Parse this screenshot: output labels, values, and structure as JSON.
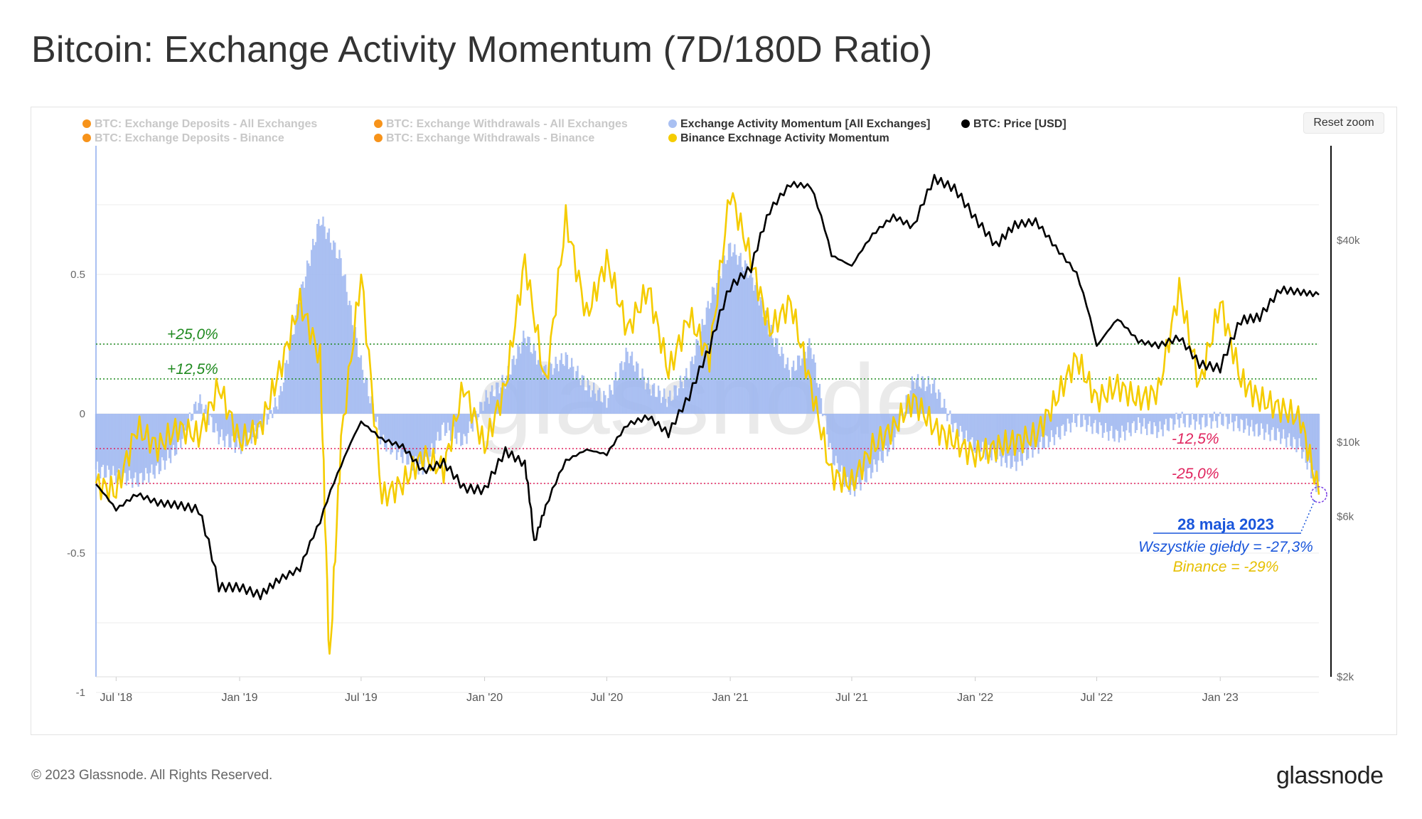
{
  "title": "Bitcoin: Exchange Activity Momentum (7D/180D Ratio)",
  "reset_zoom_label": "Reset zoom",
  "legend": [
    {
      "label": "BTC: Exchange Deposits - All Exchanges",
      "color": "#f7931a",
      "visible": false
    },
    {
      "label": "BTC: Exchange Withdrawals - All Exchanges",
      "color": "#f7931a",
      "visible": false
    },
    {
      "label": "Exchange Activity Momentum [All Exchanges]",
      "color": "#a9c0f2",
      "visible": true
    },
    {
      "label": "BTC: Price [USD]",
      "color": "#000000",
      "visible": true
    },
    {
      "label": "BTC: Exchange Deposits - Binance",
      "color": "#f7931a",
      "visible": false
    },
    {
      "label": "BTC: Exchange Withdrawals - Binance",
      "color": "#f7931a",
      "visible": false
    },
    {
      "label": "Binance Exchnage Activity Momentum",
      "color": "#f5cc00",
      "visible": true
    }
  ],
  "colors": {
    "momentum_all": "#9db6f0",
    "momentum_binance": "#f5cc00",
    "price": "#000000",
    "positive_line": "#1f8a1f",
    "negative_line": "#e0245e",
    "annotation_blue": "#1a56db",
    "annotation_yellow": "#e6bf00"
  },
  "watermark": "glassnode",
  "annotations": {
    "positive_levels": [
      {
        "value": 0.25,
        "label": "+25,0%"
      },
      {
        "value": 0.125,
        "label": "+12,5%"
      }
    ],
    "negative_levels": [
      {
        "value": -0.125,
        "label": "-12,5%"
      },
      {
        "value": -0.25,
        "label": "-25,0%"
      }
    ],
    "callout_date": "28 maja 2023",
    "callout_all": "Wszystkie giełdy = -27,3%",
    "callout_binance": "Binance = -29%"
  },
  "chart_data": {
    "type": "line",
    "x_labels": [
      "Jul '18",
      "Jan '19",
      "Jul '19",
      "Jan '20",
      "Jul '20",
      "Jan '21",
      "Jul '21",
      "Jan '22",
      "Jul '22",
      "Jan '23"
    ],
    "x_range": [
      "2018-06-01",
      "2023-05-28"
    ],
    "y_left": {
      "ticks": [
        -1,
        -0.5,
        0,
        0.5
      ],
      "range": [
        -1,
        0.9
      ]
    },
    "y_right": {
      "ticks": [
        "$2k",
        "$6k",
        "$10k",
        "$40k"
      ],
      "scale": "log"
    },
    "series": [
      {
        "name": "Exchange Activity Momentum [All Exchanges]",
        "type": "area",
        "axis": "left",
        "points": [
          [
            "2018-06-01",
            -0.2
          ],
          [
            "2018-07-01",
            -0.22
          ],
          [
            "2018-08-01",
            -0.24
          ],
          [
            "2018-09-01",
            -0.2
          ],
          [
            "2018-10-01",
            -0.12
          ],
          [
            "2018-11-01",
            0.05
          ],
          [
            "2018-12-01",
            -0.08
          ],
          [
            "2019-01-01",
            -0.12
          ],
          [
            "2019-02-01",
            -0.05
          ],
          [
            "2019-03-01",
            0.05
          ],
          [
            "2019-04-01",
            0.42
          ],
          [
            "2019-05-01",
            0.7
          ],
          [
            "2019-06-01",
            0.55
          ],
          [
            "2019-07-01",
            0.18
          ],
          [
            "2019-08-01",
            -0.1
          ],
          [
            "2019-09-01",
            -0.15
          ],
          [
            "2019-10-01",
            -0.2
          ],
          [
            "2019-11-01",
            -0.05
          ],
          [
            "2019-12-01",
            -0.1
          ],
          [
            "2020-01-01",
            0.05
          ],
          [
            "2020-02-01",
            0.12
          ],
          [
            "2020-03-01",
            0.28
          ],
          [
            "2020-04-01",
            0.15
          ],
          [
            "2020-05-01",
            0.2
          ],
          [
            "2020-06-01",
            0.1
          ],
          [
            "2020-07-01",
            0.05
          ],
          [
            "2020-08-01",
            0.22
          ],
          [
            "2020-09-01",
            0.1
          ],
          [
            "2020-10-01",
            0.05
          ],
          [
            "2020-11-01",
            0.15
          ],
          [
            "2020-12-01",
            0.4
          ],
          [
            "2021-01-01",
            0.6
          ],
          [
            "2021-02-01",
            0.5
          ],
          [
            "2021-03-01",
            0.3
          ],
          [
            "2021-04-01",
            0.15
          ],
          [
            "2021-05-01",
            0.25
          ],
          [
            "2021-06-01",
            -0.15
          ],
          [
            "2021-07-01",
            -0.28
          ],
          [
            "2021-08-01",
            -0.2
          ],
          [
            "2021-09-01",
            -0.1
          ],
          [
            "2021-10-01",
            0.12
          ],
          [
            "2021-11-01",
            0.1
          ],
          [
            "2021-12-01",
            -0.05
          ],
          [
            "2022-01-01",
            -0.12
          ],
          [
            "2022-02-01",
            -0.15
          ],
          [
            "2022-03-01",
            -0.18
          ],
          [
            "2022-04-01",
            -0.12
          ],
          [
            "2022-05-01",
            -0.08
          ],
          [
            "2022-06-01",
            -0.02
          ],
          [
            "2022-07-01",
            -0.05
          ],
          [
            "2022-08-01",
            -0.08
          ],
          [
            "2022-09-01",
            -0.04
          ],
          [
            "2022-10-01",
            -0.06
          ],
          [
            "2022-11-01",
            -0.02
          ],
          [
            "2022-12-01",
            -0.03
          ],
          [
            "2023-01-01",
            -0.02
          ],
          [
            "2023-02-01",
            -0.04
          ],
          [
            "2023-03-01",
            -0.06
          ],
          [
            "2023-04-01",
            -0.08
          ],
          [
            "2023-05-01",
            -0.12
          ],
          [
            "2023-05-28",
            -0.273
          ]
        ]
      },
      {
        "name": "Binance Exchnage Activity Momentum",
        "type": "line",
        "axis": "left",
        "points": [
          [
            "2018-06-01",
            -0.25
          ],
          [
            "2018-07-01",
            -0.28
          ],
          [
            "2018-08-01",
            -0.05
          ],
          [
            "2018-09-01",
            -0.12
          ],
          [
            "2018-10-01",
            -0.05
          ],
          [
            "2018-11-01",
            -0.08
          ],
          [
            "2018-12-01",
            0.1
          ],
          [
            "2019-01-01",
            -0.1
          ],
          [
            "2019-02-01",
            -0.05
          ],
          [
            "2019-03-01",
            0.15
          ],
          [
            "2019-04-01",
            0.4
          ],
          [
            "2019-05-01",
            0.2
          ],
          [
            "2019-05-15",
            -0.9
          ],
          [
            "2019-06-01",
            -0.1
          ],
          [
            "2019-07-01",
            0.5
          ],
          [
            "2019-08-01",
            -0.3
          ],
          [
            "2019-09-01",
            -0.25
          ],
          [
            "2019-10-01",
            -0.15
          ],
          [
            "2019-11-01",
            -0.2
          ],
          [
            "2019-12-01",
            0.1
          ],
          [
            "2020-01-01",
            -0.12
          ],
          [
            "2020-02-01",
            0.1
          ],
          [
            "2020-03-01",
            0.55
          ],
          [
            "2020-04-01",
            0.1
          ],
          [
            "2020-05-01",
            0.7
          ],
          [
            "2020-06-01",
            0.35
          ],
          [
            "2020-07-01",
            0.55
          ],
          [
            "2020-08-01",
            0.3
          ],
          [
            "2020-09-01",
            0.45
          ],
          [
            "2020-10-01",
            0.15
          ],
          [
            "2020-11-01",
            0.35
          ],
          [
            "2020-12-01",
            0.2
          ],
          [
            "2021-01-01",
            0.8
          ],
          [
            "2021-02-01",
            0.55
          ],
          [
            "2021-03-01",
            0.3
          ],
          [
            "2021-04-01",
            0.4
          ],
          [
            "2021-05-01",
            0.1
          ],
          [
            "2021-06-01",
            -0.22
          ],
          [
            "2021-07-01",
            -0.25
          ],
          [
            "2021-08-01",
            -0.12
          ],
          [
            "2021-09-01",
            -0.05
          ],
          [
            "2021-10-01",
            0.05
          ],
          [
            "2021-11-01",
            -0.05
          ],
          [
            "2021-12-01",
            -0.1
          ],
          [
            "2022-01-01",
            -0.15
          ],
          [
            "2022-02-01",
            -0.12
          ],
          [
            "2022-03-01",
            -0.1
          ],
          [
            "2022-04-01",
            -0.08
          ],
          [
            "2022-05-01",
            0.05
          ],
          [
            "2022-06-01",
            0.2
          ],
          [
            "2022-07-01",
            0.05
          ],
          [
            "2022-08-01",
            0.1
          ],
          [
            "2022-09-01",
            0.05
          ],
          [
            "2022-10-01",
            0.08
          ],
          [
            "2022-11-01",
            0.45
          ],
          [
            "2022-12-01",
            0.1
          ],
          [
            "2023-01-01",
            0.4
          ],
          [
            "2023-02-01",
            0.12
          ],
          [
            "2023-03-01",
            0.05
          ],
          [
            "2023-04-01",
            0.02
          ],
          [
            "2023-05-01",
            -0.02
          ],
          [
            "2023-05-28",
            -0.29
          ]
        ]
      },
      {
        "name": "BTC: Price [USD]",
        "type": "line",
        "axis": "right",
        "points": [
          [
            "2018-06-01",
            7500
          ],
          [
            "2018-07-01",
            6300
          ],
          [
            "2018-08-01",
            7000
          ],
          [
            "2018-09-01",
            6600
          ],
          [
            "2018-10-01",
            6500
          ],
          [
            "2018-11-01",
            6300
          ],
          [
            "2018-12-01",
            3700
          ],
          [
            "2019-01-01",
            3700
          ],
          [
            "2019-02-01",
            3500
          ],
          [
            "2019-03-01",
            3900
          ],
          [
            "2019-04-01",
            4200
          ],
          [
            "2019-05-01",
            5800
          ],
          [
            "2019-06-01",
            8500
          ],
          [
            "2019-07-01",
            11500
          ],
          [
            "2019-08-01",
            10200
          ],
          [
            "2019-09-01",
            9700
          ],
          [
            "2019-10-01",
            8200
          ],
          [
            "2019-11-01",
            8700
          ],
          [
            "2019-12-01",
            7300
          ],
          [
            "2020-01-01",
            7200
          ],
          [
            "2020-02-01",
            9400
          ],
          [
            "2020-03-01",
            8600
          ],
          [
            "2020-03-15",
            5000
          ],
          [
            "2020-04-01",
            6400
          ],
          [
            "2020-05-01",
            8800
          ],
          [
            "2020-06-01",
            9500
          ],
          [
            "2020-07-01",
            9200
          ],
          [
            "2020-08-01",
            11300
          ],
          [
            "2020-09-01",
            11900
          ],
          [
            "2020-10-01",
            10600
          ],
          [
            "2020-11-01",
            13700
          ],
          [
            "2020-12-01",
            19000
          ],
          [
            "2021-01-01",
            29000
          ],
          [
            "2021-02-01",
            33000
          ],
          [
            "2021-03-01",
            49000
          ],
          [
            "2021-04-01",
            58800
          ],
          [
            "2021-05-01",
            57800
          ],
          [
            "2021-06-01",
            36000
          ],
          [
            "2021-07-01",
            33500
          ],
          [
            "2021-08-01",
            41500
          ],
          [
            "2021-09-01",
            47000
          ],
          [
            "2021-10-01",
            43800
          ],
          [
            "2021-11-01",
            61000
          ],
          [
            "2021-12-01",
            57000
          ],
          [
            "2022-01-01",
            46300
          ],
          [
            "2022-02-01",
            38500
          ],
          [
            "2022-03-01",
            44400
          ],
          [
            "2022-04-01",
            45500
          ],
          [
            "2022-05-01",
            38000
          ],
          [
            "2022-06-01",
            31800
          ],
          [
            "2022-07-01",
            19300
          ],
          [
            "2022-08-01",
            23300
          ],
          [
            "2022-09-01",
            20000
          ],
          [
            "2022-10-01",
            19400
          ],
          [
            "2022-11-01",
            20500
          ],
          [
            "2022-12-01",
            17100
          ],
          [
            "2023-01-01",
            16600
          ],
          [
            "2023-02-01",
            23100
          ],
          [
            "2023-03-01",
            23600
          ],
          [
            "2023-04-01",
            28500
          ],
          [
            "2023-05-01",
            28000
          ],
          [
            "2023-05-28",
            27500
          ]
        ]
      }
    ]
  }
}
